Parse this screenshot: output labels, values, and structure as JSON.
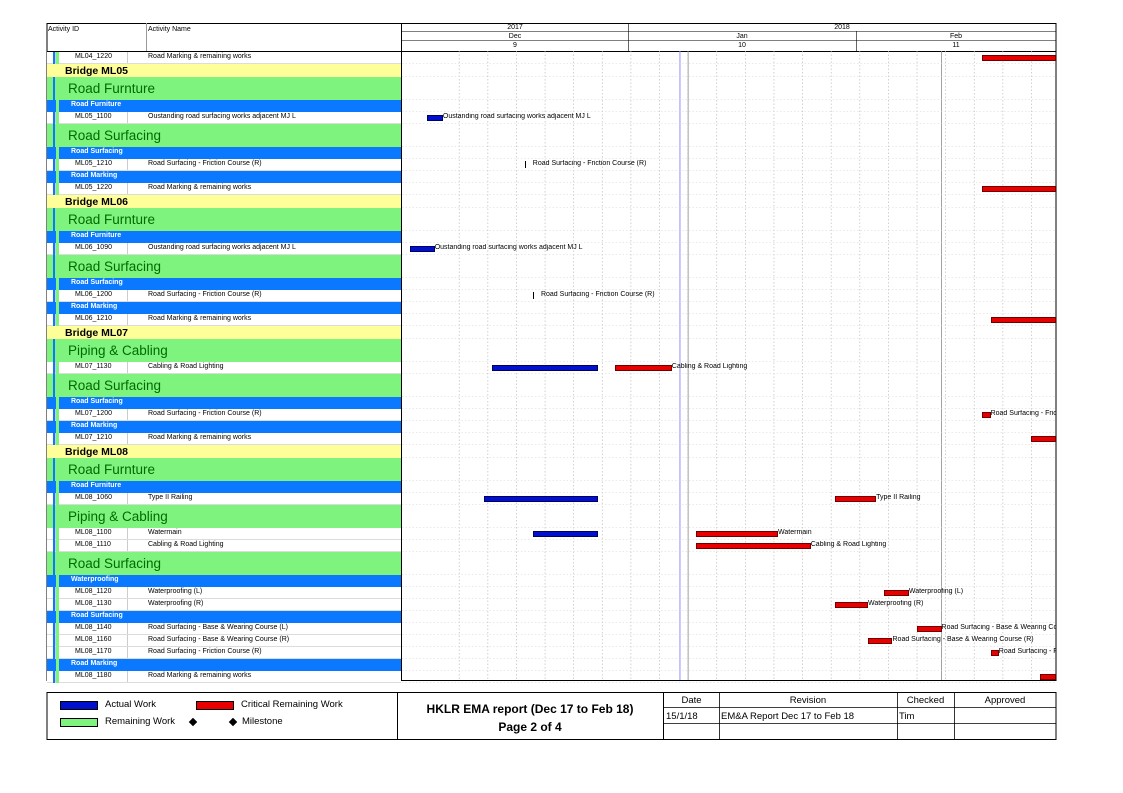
{
  "header": {
    "col_activity_id": "Activity ID",
    "col_activity_name": "Activity Name",
    "years": [
      "2017",
      "2018"
    ],
    "months": [
      "Dec",
      "Jan",
      "Feb"
    ],
    "weeks": [
      "9",
      "10",
      "11"
    ]
  },
  "colors": {
    "bridge_band": "#ffff99",
    "wbs_band": "#7ef47e",
    "wbs_text": "#006b00",
    "sub_band": "#0a78ff",
    "actual_work": "#0010cc",
    "critical_remaining": "#e80000",
    "remaining_work": "#7ef47e"
  },
  "chart_data": {
    "type": "gantt",
    "date_range": [
      "2017-11-27",
      "2018-02-15"
    ],
    "data_date": "2017-12-31",
    "rows": [
      {
        "kind": "activity",
        "id": "ML04_1220",
        "name": "Road Marking & remaining works",
        "bars": [
          {
            "type": "critical",
            "start": "2018-02-06",
            "end": "2018-02-20"
          }
        ],
        "label": ""
      },
      {
        "kind": "bridge",
        "text": "Bridge ML05"
      },
      {
        "kind": "wbs",
        "text": "Road Furnture"
      },
      {
        "kind": "sub",
        "text": "Road Furniture"
      },
      {
        "kind": "activity",
        "id": "ML05_1100",
        "name": "Oustanding road surfacing works adjacent MJ L",
        "bars": [
          {
            "type": "actual",
            "start": "2017-11-30",
            "end": "2017-12-01"
          }
        ],
        "label": "Oustanding road surfacing works adjacent MJ L",
        "label_at": "2017-12-02"
      },
      {
        "kind": "wbs",
        "text": "Road Surfacing"
      },
      {
        "kind": "sub",
        "text": "Road Surfacing"
      },
      {
        "kind": "activity",
        "id": "ML05_1210",
        "name": "Road Surfacing - Friction Course (R)",
        "bars": [
          {
            "type": "tick",
            "start": "2017-12-12",
            "end": "2017-12-12"
          }
        ],
        "label": "Road Surfacing - Friction Course (R)",
        "label_at": "2017-12-13"
      },
      {
        "kind": "sub",
        "text": "Road Marking"
      },
      {
        "kind": "activity",
        "id": "ML05_1220",
        "name": "Road Marking & remaining works",
        "bars": [
          {
            "type": "critical",
            "start": "2018-02-06",
            "end": "2018-02-20"
          }
        ],
        "label": ""
      },
      {
        "kind": "bridge",
        "text": "Bridge ML06"
      },
      {
        "kind": "wbs",
        "text": "Road Furnture"
      },
      {
        "kind": "sub",
        "text": "Road Furniture"
      },
      {
        "kind": "activity",
        "id": "ML06_1090",
        "name": "Oustanding road surfacing works adjacent MJ L",
        "bars": [
          {
            "type": "actual",
            "start": "2017-11-28",
            "end": "2017-11-30"
          }
        ],
        "label": "Oustanding road surfacing works adjacent MJ L",
        "label_at": "2017-12-01"
      },
      {
        "kind": "wbs",
        "text": "Road Surfacing"
      },
      {
        "kind": "sub",
        "text": "Road Surfacing"
      },
      {
        "kind": "activity",
        "id": "ML06_1200",
        "name": "Road Surfacing - Friction Course (R)",
        "bars": [
          {
            "type": "tick",
            "start": "2017-12-13",
            "end": "2017-12-13"
          }
        ],
        "label": "Road Surfacing - Friction Course (R)",
        "label_at": "2017-12-14"
      },
      {
        "kind": "sub",
        "text": "Road Marking"
      },
      {
        "kind": "activity",
        "id": "ML06_1210",
        "name": "Road Marking & remaining works",
        "bars": [
          {
            "type": "critical",
            "start": "2018-02-07",
            "end": "2018-02-20"
          }
        ],
        "label": ""
      },
      {
        "kind": "bridge",
        "text": "Bridge ML07"
      },
      {
        "kind": "wbs",
        "text": "Piping & Cabling"
      },
      {
        "kind": "activity",
        "id": "ML07_1130",
        "name": "Cabling & Road Lighting",
        "bars": [
          {
            "type": "actual",
            "start": "2017-12-08",
            "end": "2017-12-20"
          },
          {
            "type": "critical",
            "start": "2017-12-23",
            "end": "2017-12-29"
          }
        ],
        "label": "Cabling & Road Lighting",
        "label_at": "2017-12-30"
      },
      {
        "kind": "wbs",
        "text": "Road Surfacing"
      },
      {
        "kind": "sub",
        "text": "Road Surfacing"
      },
      {
        "kind": "activity",
        "id": "ML07_1200",
        "name": "Road Surfacing - Friction Course (R)",
        "bars": [
          {
            "type": "critical",
            "start": "2018-02-06",
            "end": "2018-02-06"
          }
        ],
        "label": "Road Surfacing - Friction Co",
        "label_at": "2018-02-07"
      },
      {
        "kind": "sub",
        "text": "Road Marking"
      },
      {
        "kind": "activity",
        "id": "ML07_1210",
        "name": "Road Marking & remaining works",
        "bars": [
          {
            "type": "critical",
            "start": "2018-02-12",
            "end": "2018-02-20"
          }
        ],
        "label": ""
      },
      {
        "kind": "bridge",
        "text": "Bridge ML08"
      },
      {
        "kind": "wbs",
        "text": "Road Furnture"
      },
      {
        "kind": "sub",
        "text": "Road Furniture"
      },
      {
        "kind": "activity",
        "id": "ML08_1060",
        "name": "Type II Railing",
        "bars": [
          {
            "type": "actual",
            "start": "2017-12-07",
            "end": "2017-12-20"
          },
          {
            "type": "critical",
            "start": "2018-01-19",
            "end": "2018-01-23"
          }
        ],
        "label": "Type II Railing",
        "label_at": "2018-01-24"
      },
      {
        "kind": "wbs",
        "text": "Piping & Cabling"
      },
      {
        "kind": "activity",
        "id": "ML08_1100",
        "name": "Watermain",
        "bars": [
          {
            "type": "actual",
            "start": "2017-12-13",
            "end": "2017-12-20"
          },
          {
            "type": "critical",
            "start": "2018-01-02",
            "end": "2018-01-11"
          }
        ],
        "label": "Watermain",
        "label_at": "2018-01-12"
      },
      {
        "kind": "activity",
        "id": "ML08_1110",
        "name": "Cabling & Road Lighting",
        "bars": [
          {
            "type": "critical",
            "start": "2018-01-02",
            "end": "2018-01-15"
          }
        ],
        "label": "Cabling & Road Lighting",
        "label_at": "2018-01-16"
      },
      {
        "kind": "wbs",
        "text": "Road Surfacing"
      },
      {
        "kind": "sub",
        "text": "Waterproofing"
      },
      {
        "kind": "activity",
        "id": "ML08_1120",
        "name": "Waterproofing (L)",
        "bars": [
          {
            "type": "critical",
            "start": "2018-01-25",
            "end": "2018-01-27"
          }
        ],
        "label": "Waterproofing (L)",
        "label_at": "2018-01-28"
      },
      {
        "kind": "activity",
        "id": "ML08_1130",
        "name": "Waterproofing (R)",
        "bars": [
          {
            "type": "critical",
            "start": "2018-01-19",
            "end": "2018-01-22"
          }
        ],
        "label": "Waterproofing (R)",
        "label_at": "2018-01-23"
      },
      {
        "kind": "sub",
        "text": "Road Surfacing"
      },
      {
        "kind": "activity",
        "id": "ML08_1140",
        "name": "Road Surfacing - Base & Wearing Course (L)",
        "bars": [
          {
            "type": "critical",
            "start": "2018-01-29",
            "end": "2018-01-31"
          }
        ],
        "label": "Road Surfacing - Base & Wearing Course (L",
        "label_at": "2018-02-01"
      },
      {
        "kind": "activity",
        "id": "ML08_1160",
        "name": "Road Surfacing - Base & Wearing Course (R)",
        "bars": [
          {
            "type": "critical",
            "start": "2018-01-23",
            "end": "2018-01-25"
          }
        ],
        "label": "Road Surfacing - Base & Wearing Course (R)",
        "label_at": "2018-01-26"
      },
      {
        "kind": "activity",
        "id": "ML08_1170",
        "name": "Road Surfacing - Friction Course (R)",
        "bars": [
          {
            "type": "critical",
            "start": "2018-02-07",
            "end": "2018-02-07"
          }
        ],
        "label": "Road Surfacing - Friction C",
        "label_at": "2018-02-08"
      },
      {
        "kind": "sub",
        "text": "Road Marking"
      },
      {
        "kind": "activity",
        "id": "ML08_1180",
        "name": "Road Marking & remaining works",
        "bars": [
          {
            "type": "critical",
            "start": "2018-02-13",
            "end": "2018-02-20"
          }
        ],
        "label": ""
      }
    ]
  },
  "legend": {
    "actual_work": "Actual Work",
    "critical_remaining_work": "Critical Remaining Work",
    "remaining_work": "Remaining Work",
    "milestone": "Milestone"
  },
  "title_block": {
    "title": "HKLR EMA report (Dec 17 to Feb 18)",
    "page": "Page 2 of 4",
    "col_date": "Date",
    "col_revision": "Revision",
    "col_checked": "Checked",
    "col_approved": "Approved",
    "date": "15/1/18",
    "revision": "EM&A Report Dec 17 to Feb 18",
    "checked": "Tim",
    "approved": ""
  }
}
